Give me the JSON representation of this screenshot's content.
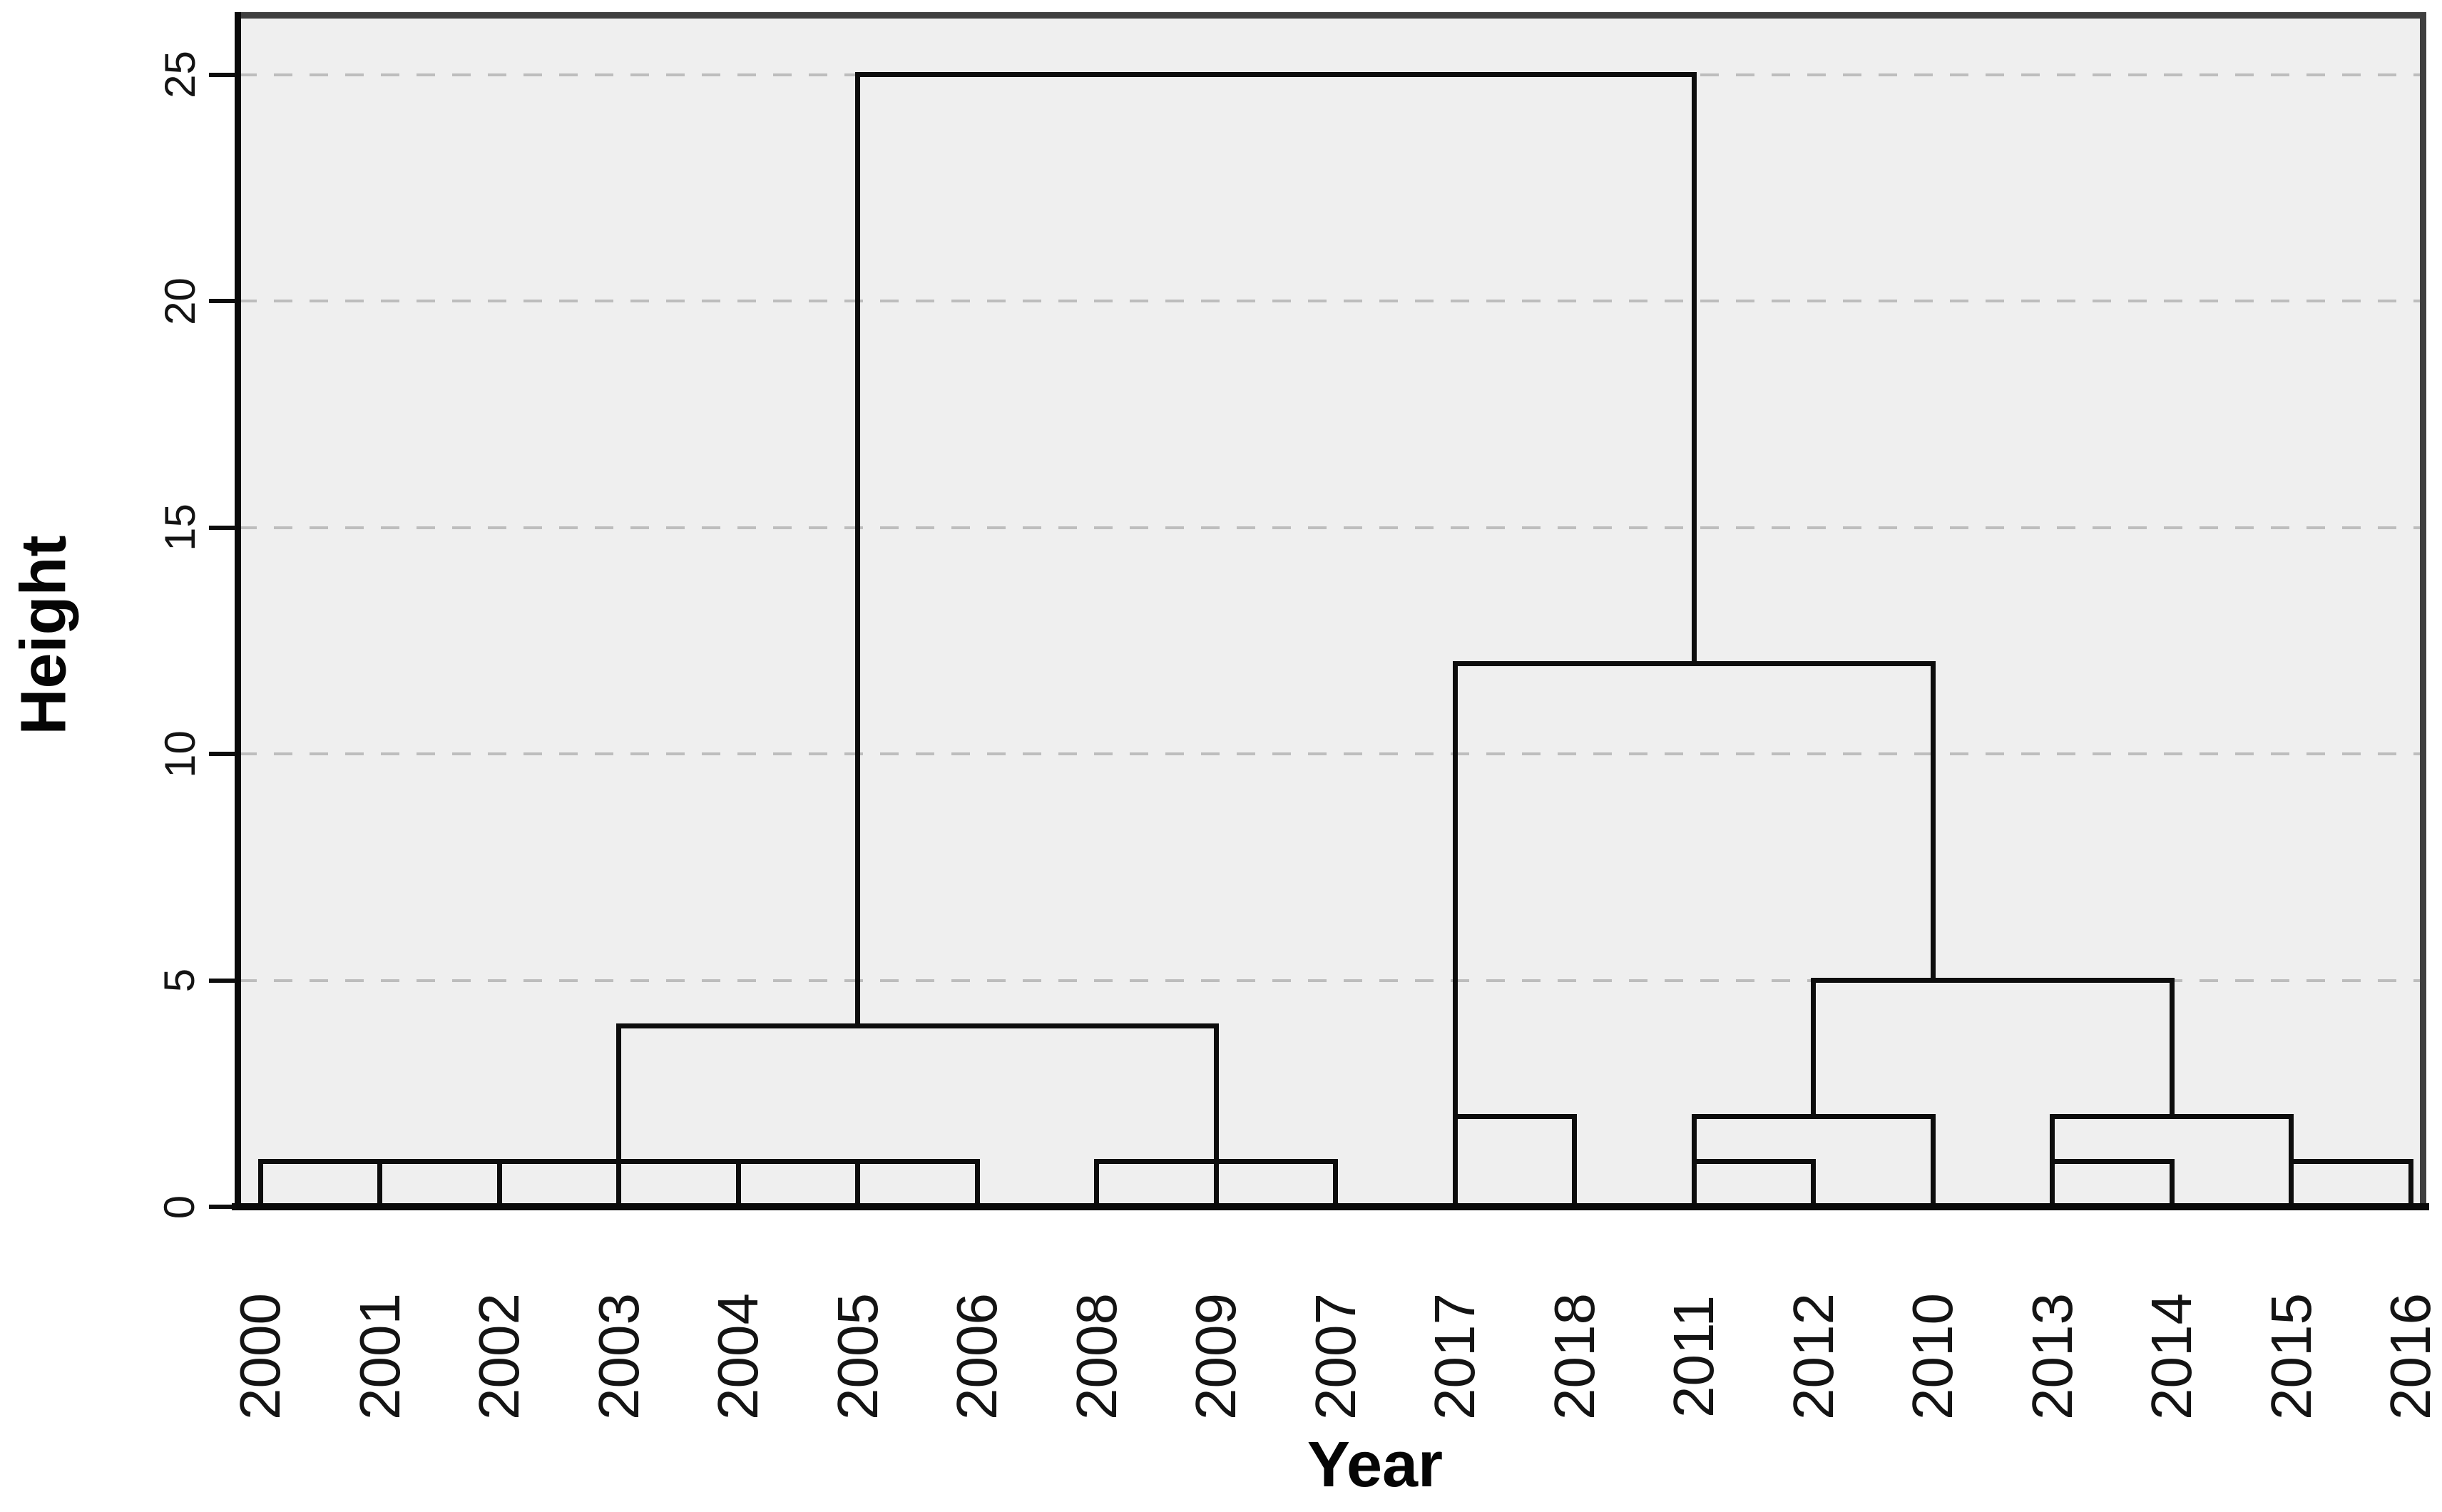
{
  "chart_data": {
    "type": "dendrogram",
    "title": "",
    "xlabel": "Year",
    "ylabel": "Height",
    "ylim": [
      0,
      25
    ],
    "y_ticks": [
      "0",
      "5",
      "10",
      "15",
      "20",
      "25"
    ],
    "grid": "horizontal dashed gridlines at y = 5,10,15,20,25",
    "legend": "none",
    "plot_style": "gray panel, dark frame, black cluster tree lines, rotated tick labels",
    "leaf_order": [
      "2000",
      "2001",
      "2002",
      "2003",
      "2004",
      "2005",
      "2006",
      "2008",
      "2009",
      "2007",
      "2017",
      "2018",
      "2011",
      "2012",
      "2010",
      "2013",
      "2014",
      "2015",
      "2016"
    ],
    "merges": [
      {
        "name": "cluster-2000-to-2006",
        "height": 1,
        "bar_from_leaf": 0,
        "bar_to_leaf": 6,
        "drops_to_baseline": [
          0,
          1,
          2,
          3,
          4,
          5,
          6
        ],
        "stem": {
          "leaf": 3,
          "from_height": 1,
          "to_height": 4
        }
      },
      {
        "name": "cluster-2008-2009-2007",
        "height": 1,
        "bar_from_leaf": 7,
        "bar_to_leaf": 9,
        "drops_to_baseline": [
          7,
          8,
          9
        ],
        "stem": {
          "leaf": 8,
          "from_height": 1,
          "to_height": 4
        }
      },
      {
        "name": "cluster-2000-to-2007",
        "height": 4,
        "bar_from_leaf": 3,
        "bar_to_leaf": 8,
        "drops_to_baseline": [],
        "stem": {
          "leaf": 5,
          "from_height": 4,
          "to_height": 25
        }
      },
      {
        "name": "cluster-2017-2018",
        "height": 2,
        "bar_from_leaf": 10,
        "bar_to_leaf": 11,
        "drops_to_baseline": [
          10,
          11
        ],
        "stem": {
          "leaf": 10,
          "from_height": 2,
          "to_height": 12
        }
      },
      {
        "name": "cluster-2011-2012",
        "height": 1,
        "bar_from_leaf": 12,
        "bar_to_leaf": 13,
        "drops_to_baseline": [
          12,
          13
        ],
        "stem": {
          "leaf": 12,
          "from_height": 1,
          "to_height": 2
        }
      },
      {
        "name": "cluster-2011-2012-2010",
        "height": 2,
        "bar_from_leaf": 12,
        "bar_to_leaf": 14,
        "drops_to_baseline": [
          14
        ],
        "stem": {
          "leaf": 13,
          "from_height": 2,
          "to_height": 5
        }
      },
      {
        "name": "cluster-2013-2014",
        "height": 1,
        "bar_from_leaf": 15,
        "bar_to_leaf": 16,
        "drops_to_baseline": [
          15,
          16
        ],
        "stem": {
          "leaf": 15,
          "from_height": 1,
          "to_height": 2
        }
      },
      {
        "name": "cluster-2015-2016",
        "height": 1,
        "bar_from_leaf": 17,
        "bar_to_leaf": 18,
        "drops_to_baseline": [
          17,
          18
        ],
        "stem": {
          "leaf": 17,
          "from_height": 1,
          "to_height": 2
        }
      },
      {
        "name": "cluster-2013-to-2016",
        "height": 2,
        "bar_from_leaf": 15,
        "bar_to_leaf": 17,
        "drops_to_baseline": [],
        "stem": {
          "leaf": 16,
          "from_height": 2,
          "to_height": 5
        }
      },
      {
        "name": "cluster-2011-to-2016",
        "height": 5,
        "bar_from_leaf": 13,
        "bar_to_leaf": 16,
        "drops_to_baseline": [],
        "stem": {
          "leaf": 14,
          "from_height": 5,
          "to_height": 12
        }
      },
      {
        "name": "cluster-right-supercluster",
        "height": 12,
        "bar_from_leaf": 10,
        "bar_to_leaf": 14,
        "drops_to_baseline": [],
        "stem": {
          "leaf": 12,
          "from_height": 12,
          "to_height": 25
        }
      },
      {
        "name": "root",
        "height": 25,
        "bar_from_leaf": 5,
        "bar_to_leaf": 12,
        "drops_to_baseline": [],
        "stem": null
      }
    ],
    "colors": {
      "line": "#0d0d0d",
      "plot_background": "#efefef",
      "outer_background": "#ffffff",
      "gridline": "#bdbdbd",
      "frame_dark": "#3f3f3f",
      "text": "#141414"
    }
  }
}
